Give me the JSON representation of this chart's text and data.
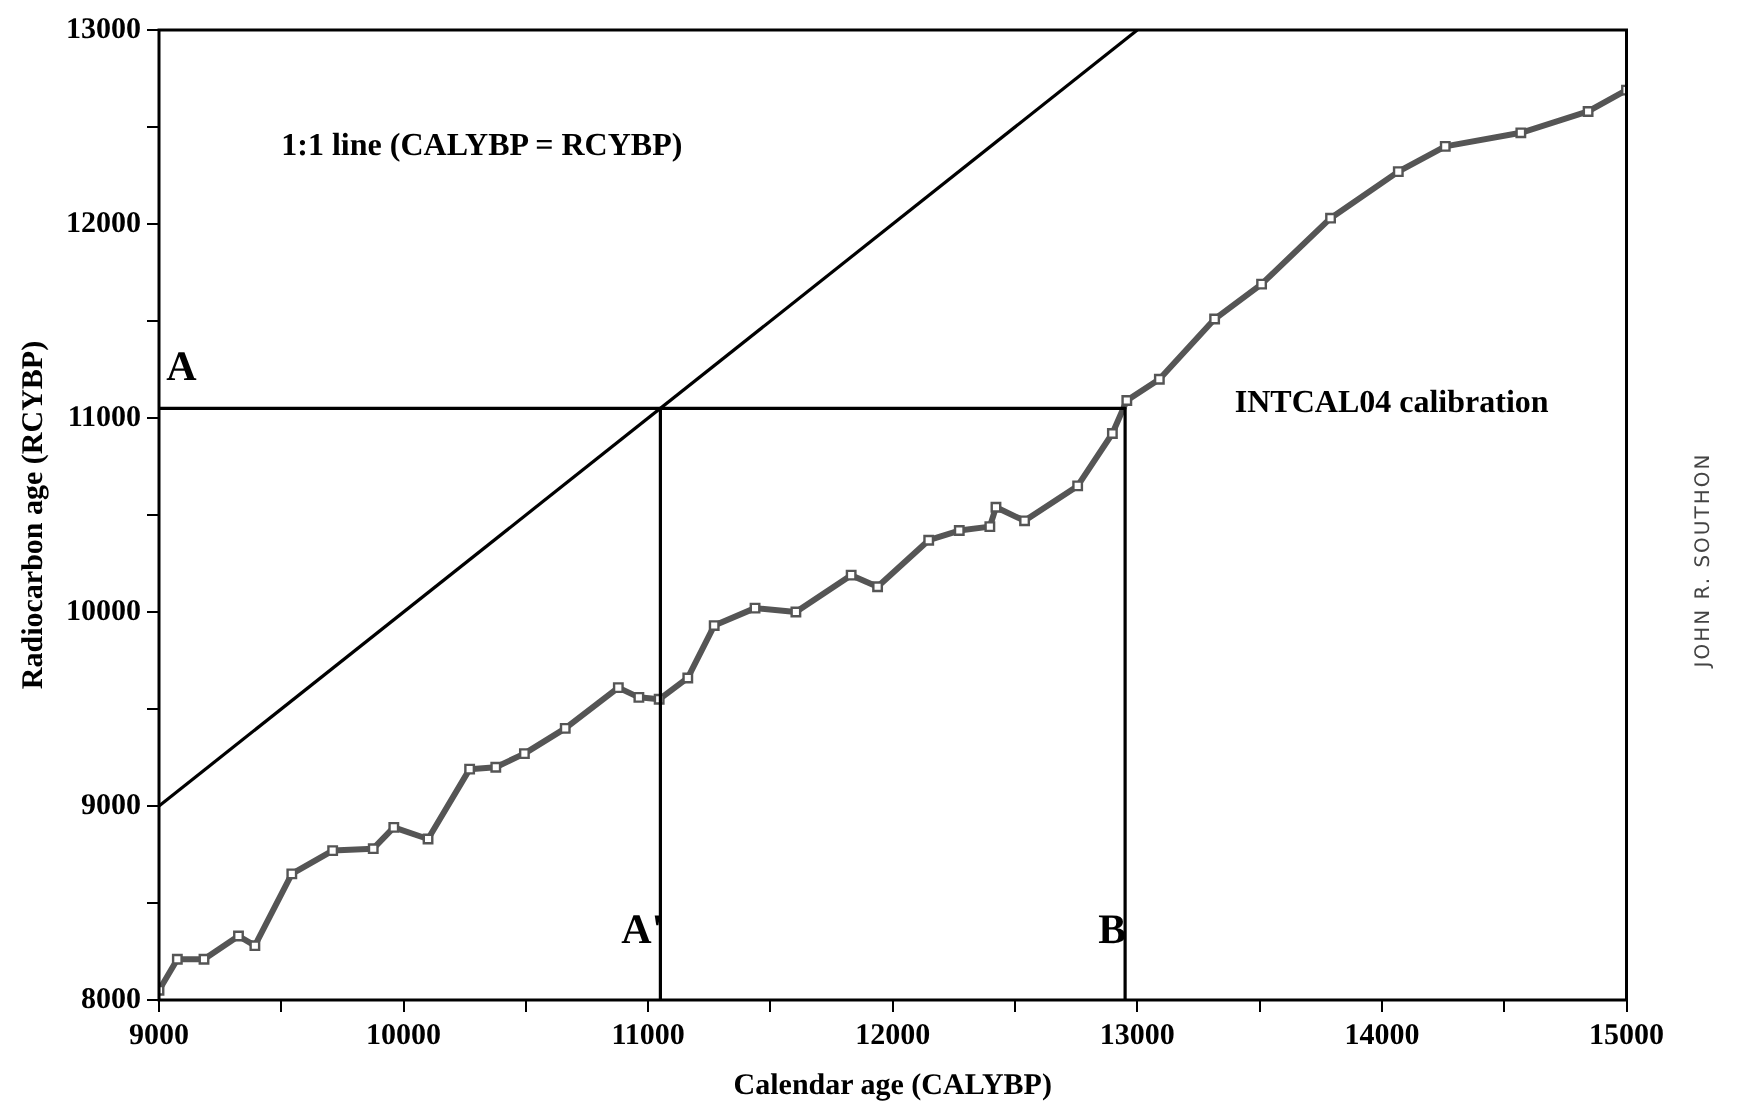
{
  "chart_data": {
    "type": "line",
    "xlabel": "Calendar age (CALYBP)",
    "ylabel": "Radiocarbon age (RCYBP)",
    "xlim": [
      9000,
      15000
    ],
    "ylim": [
      8000,
      13000
    ],
    "xticks": [
      9000,
      {
        "value": 9500,
        "label": null
      },
      10000,
      {
        "value": 10500,
        "label": null
      },
      11000,
      {
        "value": 11500,
        "label": null
      },
      12000,
      {
        "value": 12500,
        "label": null
      },
      13000,
      {
        "value": 13500,
        "label": null
      },
      14000,
      {
        "value": 14500,
        "label": null
      },
      15000
    ],
    "yticks": [
      8000,
      {
        "value": 8500,
        "label": null
      },
      9000,
      {
        "value": 9500,
        "label": null
      },
      10000,
      {
        "value": 10500,
        "label": null
      },
      11000,
      {
        "value": 11500,
        "label": null
      },
      12000,
      {
        "value": 12500,
        "label": null
      },
      13000
    ],
    "grid": false,
    "legend": false,
    "series": [
      {
        "type": "line",
        "color": "#000000",
        "marker": "none",
        "x": [
          9000,
          13000
        ],
        "values": [
          9000,
          13000
        ]
      },
      {
        "type": "line",
        "color": "#000000",
        "marker": "none",
        "x": [
          9000,
          12950,
          12950
        ],
        "values": [
          11050,
          11050,
          8000
        ]
      },
      {
        "type": "line",
        "color": "#000000",
        "marker": "none",
        "x": [
          11050,
          11050
        ],
        "values": [
          11050,
          8000
        ]
      },
      {
        "type": "line",
        "color": "#555555",
        "marker": "square",
        "x": [
          9000,
          9075,
          9184,
          9325,
          9392,
          9543,
          9710,
          9876,
          9960,
          10100,
          10270,
          10377,
          10494,
          10661,
          10878,
          10962,
          11045,
          11162,
          11270,
          11437,
          11604,
          11830,
          11938,
          12147,
          12272,
          12397,
          12422,
          12539,
          12756,
          12898,
          12957,
          13090,
          13316,
          13508,
          13790,
          14067,
          14259,
          14568,
          14843,
          15000
        ],
        "values": [
          8050,
          8210,
          8210,
          8330,
          8280,
          8650,
          8770,
          8780,
          8890,
          8830,
          9190,
          9200,
          9270,
          9400,
          9610,
          9560,
          9550,
          9660,
          9930,
          10020,
          10000,
          10190,
          10130,
          10370,
          10420,
          10440,
          10540,
          10470,
          10650,
          10920,
          11090,
          11200,
          11510,
          11690,
          12030,
          12270,
          12400,
          12470,
          12580,
          12690
        ]
      }
    ],
    "annotations": [
      "1:1 line (CALYBP = RCYBP)",
      "INTCAL04 calibration",
      "A",
      "A'",
      "B",
      "JOHN R. SOUTHON"
    ]
  }
}
